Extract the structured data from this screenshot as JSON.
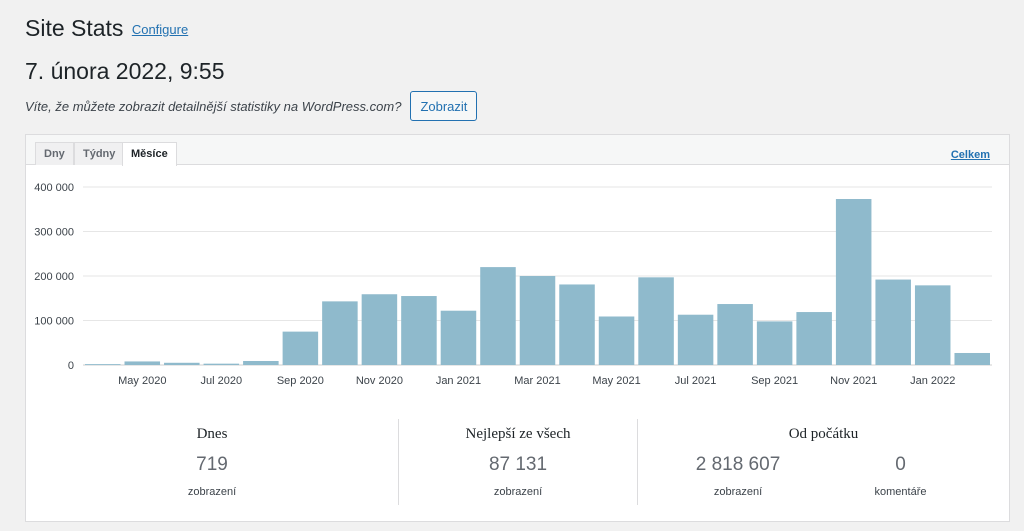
{
  "header": {
    "title": "Site Stats",
    "configure_label": "Configure"
  },
  "date": "7. února 2022, 9:55",
  "promo": {
    "text": "Víte, že můžete zobrazit detailnější statistiky na WordPress.com?",
    "button_label": "Zobrazit"
  },
  "tabs": [
    {
      "label": "Dny",
      "active": false
    },
    {
      "label": "Týdny",
      "active": false
    },
    {
      "label": "Měsíce",
      "active": true
    }
  ],
  "total_link_label": "Celkem",
  "chart_data": {
    "type": "bar",
    "categories": [
      "Apr 2020",
      "May 2020",
      "Jun 2020",
      "Jul 2020",
      "Aug 2020",
      "Sep 2020",
      "Oct 2020",
      "Nov 2020",
      "Dec 2020",
      "Jan 2021",
      "Feb 2021",
      "Mar 2021",
      "Apr 2021",
      "May 2021",
      "Jun 2021",
      "Jul 2021",
      "Aug 2021",
      "Sep 2021",
      "Oct 2021",
      "Nov 2021",
      "Dec 2021",
      "Jan 2022",
      "Feb 2022"
    ],
    "x_tick_labels": [
      "May 2020",
      "Jul 2020",
      "Sep 2020",
      "Nov 2020",
      "Jan 2021",
      "Mar 2021",
      "May 2021",
      "Jul 2021",
      "Sep 2021",
      "Nov 2021",
      "Jan 2022"
    ],
    "values": [
      2000,
      8000,
      5000,
      3000,
      9000,
      75000,
      143000,
      159000,
      155000,
      122000,
      220000,
      200000,
      181000,
      109000,
      197000,
      113000,
      137000,
      98000,
      119000,
      373000,
      192000,
      179000,
      27000
    ],
    "y_ticks": [
      0,
      100000,
      200000,
      300000,
      400000
    ],
    "y_tick_labels": [
      "0",
      "100 000",
      "200 000",
      "300 000",
      "400 000"
    ],
    "ylim": [
      0,
      400000
    ],
    "bar_color": "#8fbacc",
    "grid": true
  },
  "stats": {
    "today": {
      "title": "Dnes",
      "value": "719",
      "label": "zobrazení"
    },
    "best": {
      "title": "Nejlepší ze všech",
      "value": "87 131",
      "label": "zobrazení"
    },
    "alltime": {
      "title": "Od počátku",
      "views_value": "2 818 607",
      "views_label": "zobrazení",
      "comments_value": "0",
      "comments_label": "komentáře"
    }
  }
}
